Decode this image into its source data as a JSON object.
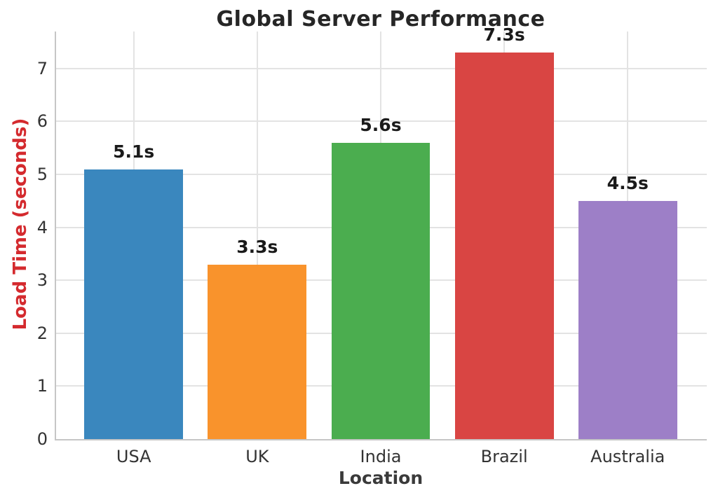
{
  "chart_data": {
    "type": "bar",
    "title": "Global Server Performance",
    "xlabel": "Location",
    "ylabel": "Load Time (seconds)",
    "categories": [
      "USA",
      "UK",
      "India",
      "Brazil",
      "Australia"
    ],
    "values": [
      5.1,
      3.3,
      5.6,
      7.3,
      4.5
    ],
    "value_labels": [
      "5.1s",
      "3.3s",
      "5.6s",
      "7.3s",
      "4.5s"
    ],
    "yticks": [
      "0",
      "1",
      "2",
      "3",
      "4",
      "5",
      "6",
      "7"
    ],
    "ylim": [
      0,
      7.7
    ],
    "grid": "both",
    "legend": "none",
    "colors": {
      "bars": [
        "#3a87be",
        "#f9932c",
        "#4bad4f",
        "#d94543",
        "#9d7fc7"
      ],
      "title": "#262626",
      "ylabel": "#d42a2e",
      "xlabel": "#3a3a3a",
      "tick_labels": "#333333",
      "value_labels": "#1a1a1a",
      "grid": "#e3e3e3",
      "spine": "#c6c6c6",
      "background": "#ffffff"
    }
  }
}
